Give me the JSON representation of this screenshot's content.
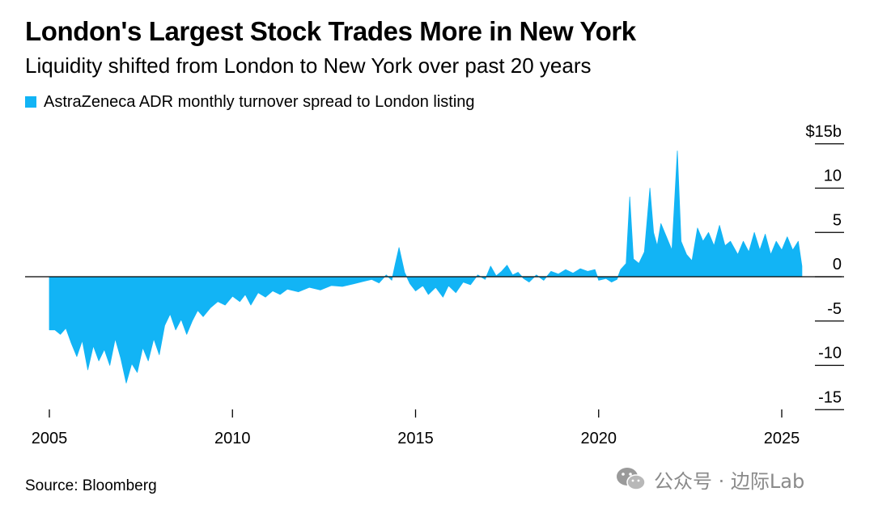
{
  "title": "London's Largest Stock Trades More in New York",
  "subtitle": "Liquidity shifted from London to New York over past 20 years",
  "source": "Source: Bloomberg",
  "watermark": "公众号 · 边际Lab",
  "colors": {
    "series": "#12B4F5",
    "axis": "#000000",
    "text": "#000000",
    "watermark": "#8a8a8a"
  },
  "chart_data": {
    "type": "area",
    "title": "London's Largest Stock Trades More in New York",
    "subtitle": "Liquidity shifted from London to New York over past 20 years",
    "xlabel": "",
    "ylabel": "",
    "unit_label": "$15b",
    "xlim": [
      2004.6,
      2026.8
    ],
    "ylim": [
      -15,
      15
    ],
    "x_ticks": [
      2005,
      2010,
      2015,
      2020,
      2025
    ],
    "x_tick_labels": [
      "2005",
      "2010",
      "2015",
      "2020",
      "2025"
    ],
    "y_ticks": [
      15,
      10,
      5,
      0,
      -5,
      -10,
      -15
    ],
    "y_tick_labels": [
      "$15b",
      "10",
      "5",
      "0",
      "-5",
      "-10",
      "-15"
    ],
    "grid": false,
    "legend": "top-left",
    "series": [
      {
        "name": "AstraZeneca ADR monthly turnover spread to London listing",
        "color": "#12B4F5",
        "points": [
          [
            2005.0,
            0
          ],
          [
            2005.0,
            -6.0
          ],
          [
            2005.15,
            -6.0
          ],
          [
            2005.3,
            -6.5
          ],
          [
            2005.45,
            -5.8
          ],
          [
            2005.6,
            -7.5
          ],
          [
            2005.75,
            -9.0
          ],
          [
            2005.9,
            -7.2
          ],
          [
            2006.05,
            -10.5
          ],
          [
            2006.2,
            -7.8
          ],
          [
            2006.35,
            -9.5
          ],
          [
            2006.5,
            -8.2
          ],
          [
            2006.65,
            -10.0
          ],
          [
            2006.8,
            -7.0
          ],
          [
            2006.95,
            -9.2
          ],
          [
            2007.1,
            -12.0
          ],
          [
            2007.25,
            -9.8
          ],
          [
            2007.4,
            -10.8
          ],
          [
            2007.55,
            -8.0
          ],
          [
            2007.7,
            -9.5
          ],
          [
            2007.85,
            -7.0
          ],
          [
            2008.0,
            -8.8
          ],
          [
            2008.15,
            -5.5
          ],
          [
            2008.3,
            -4.2
          ],
          [
            2008.45,
            -6.0
          ],
          [
            2008.6,
            -4.8
          ],
          [
            2008.75,
            -6.5
          ],
          [
            2008.9,
            -5.0
          ],
          [
            2009.05,
            -3.8
          ],
          [
            2009.2,
            -4.5
          ],
          [
            2009.4,
            -3.5
          ],
          [
            2009.6,
            -2.8
          ],
          [
            2009.8,
            -3.2
          ],
          [
            2010.0,
            -2.2
          ],
          [
            2010.2,
            -2.8
          ],
          [
            2010.35,
            -2.0
          ],
          [
            2010.5,
            -3.2
          ],
          [
            2010.7,
            -1.8
          ],
          [
            2010.9,
            -2.3
          ],
          [
            2011.1,
            -1.6
          ],
          [
            2011.3,
            -2.0
          ],
          [
            2011.5,
            -1.4
          ],
          [
            2011.8,
            -1.7
          ],
          [
            2012.1,
            -1.2
          ],
          [
            2012.4,
            -1.5
          ],
          [
            2012.7,
            -1.0
          ],
          [
            2013.0,
            -1.1
          ],
          [
            2013.3,
            -0.8
          ],
          [
            2013.6,
            -0.5
          ],
          [
            2013.8,
            -0.3
          ],
          [
            2014.0,
            -0.7
          ],
          [
            2014.2,
            0.2
          ],
          [
            2014.35,
            -0.4
          ],
          [
            2014.45,
            1.5
          ],
          [
            2014.55,
            3.3
          ],
          [
            2014.7,
            0.5
          ],
          [
            2014.85,
            -0.8
          ],
          [
            2015.0,
            -1.6
          ],
          [
            2015.2,
            -1.0
          ],
          [
            2015.35,
            -2.0
          ],
          [
            2015.55,
            -1.2
          ],
          [
            2015.75,
            -2.3
          ],
          [
            2015.9,
            -1.0
          ],
          [
            2016.1,
            -1.8
          ],
          [
            2016.3,
            -0.6
          ],
          [
            2016.5,
            -0.9
          ],
          [
            2016.7,
            0.2
          ],
          [
            2016.9,
            -0.3
          ],
          [
            2017.05,
            1.2
          ],
          [
            2017.2,
            0.1
          ],
          [
            2017.35,
            0.6
          ],
          [
            2017.5,
            1.3
          ],
          [
            2017.65,
            0.2
          ],
          [
            2017.8,
            0.5
          ],
          [
            2017.95,
            -0.2
          ],
          [
            2018.1,
            -0.6
          ],
          [
            2018.3,
            0.2
          ],
          [
            2018.5,
            -0.4
          ],
          [
            2018.7,
            0.6
          ],
          [
            2018.9,
            0.3
          ],
          [
            2019.1,
            0.8
          ],
          [
            2019.3,
            0.4
          ],
          [
            2019.5,
            0.9
          ],
          [
            2019.7,
            0.6
          ],
          [
            2019.9,
            0.8
          ],
          [
            2020.0,
            -0.4
          ],
          [
            2020.2,
            -0.2
          ],
          [
            2020.35,
            -0.6
          ],
          [
            2020.5,
            -0.3
          ],
          [
            2020.6,
            0.8
          ],
          [
            2020.75,
            1.5
          ],
          [
            2020.85,
            9.0
          ],
          [
            2020.95,
            2.0
          ],
          [
            2021.1,
            1.5
          ],
          [
            2021.25,
            2.8
          ],
          [
            2021.4,
            10.0
          ],
          [
            2021.5,
            5.0
          ],
          [
            2021.6,
            3.5
          ],
          [
            2021.7,
            6.0
          ],
          [
            2021.85,
            4.5
          ],
          [
            2022.0,
            3.0
          ],
          [
            2022.15,
            14.2
          ],
          [
            2022.25,
            4.0
          ],
          [
            2022.4,
            2.5
          ],
          [
            2022.55,
            1.8
          ],
          [
            2022.7,
            5.5
          ],
          [
            2022.85,
            4.0
          ],
          [
            2023.0,
            5.0
          ],
          [
            2023.15,
            3.5
          ],
          [
            2023.3,
            5.8
          ],
          [
            2023.45,
            3.5
          ],
          [
            2023.6,
            4.0
          ],
          [
            2023.8,
            2.5
          ],
          [
            2023.95,
            4.0
          ],
          [
            2024.1,
            2.8
          ],
          [
            2024.25,
            5.0
          ],
          [
            2024.4,
            3.0
          ],
          [
            2024.55,
            4.8
          ],
          [
            2024.7,
            2.5
          ],
          [
            2024.85,
            4.0
          ],
          [
            2025.0,
            3.0
          ],
          [
            2025.15,
            4.5
          ],
          [
            2025.3,
            3.0
          ],
          [
            2025.45,
            4.0
          ],
          [
            2025.55,
            1.2
          ],
          [
            2025.55,
            0
          ]
        ]
      }
    ]
  }
}
